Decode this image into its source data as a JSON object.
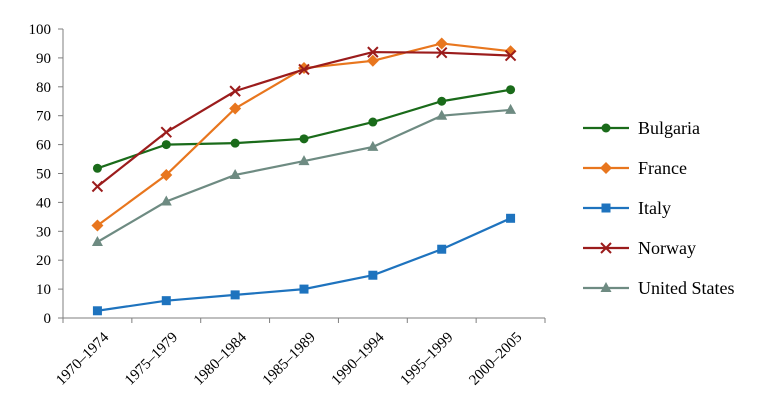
{
  "chart_data": {
    "type": "line",
    "categories": [
      "1970–1974",
      "1975–1979",
      "1980–1984",
      "1985–1989",
      "1990–1994",
      "1995–1999",
      "2000–2005"
    ],
    "ylim": [
      0,
      100
    ],
    "yticks": [
      0,
      10,
      20,
      30,
      40,
      50,
      60,
      70,
      80,
      90,
      100
    ],
    "grid": false,
    "legend": "right",
    "series": [
      {
        "name": "Bulgaria",
        "color": "#1a6b1a",
        "marker": "circle",
        "values": [
          51.8,
          60,
          60.5,
          62,
          67.8,
          75,
          79
        ]
      },
      {
        "name": "France",
        "color": "#e8761e",
        "marker": "diamond",
        "values": [
          32,
          49.5,
          72.5,
          86.5,
          89,
          95,
          92.3
        ]
      },
      {
        "name": "Italy",
        "color": "#1e73be",
        "marker": "square",
        "values": [
          2.5,
          6,
          8,
          10,
          14.8,
          23.8,
          34.5
        ]
      },
      {
        "name": "Norway",
        "color": "#9b1c1c",
        "marker": "x",
        "values": [
          45.5,
          64.3,
          78.5,
          86,
          92,
          91.8,
          90.8
        ]
      },
      {
        "name": "United States",
        "color": "#6e8b82",
        "marker": "triangle",
        "values": [
          26.3,
          40.3,
          49.5,
          54.3,
          59.2,
          70,
          72
        ]
      }
    ]
  }
}
